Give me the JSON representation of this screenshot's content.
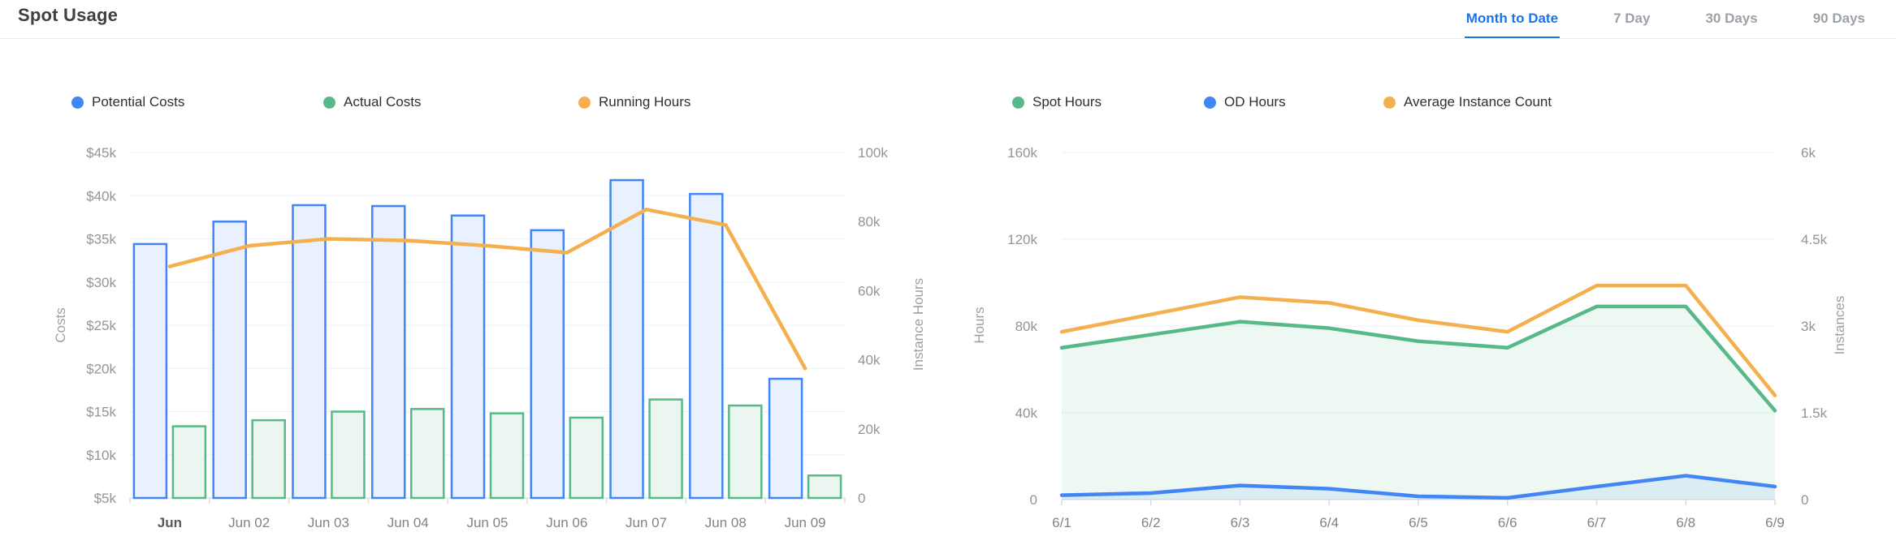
{
  "header": {
    "title": "Spot Usage"
  },
  "tabs": [
    {
      "label": "Month to Date",
      "active": true
    },
    {
      "label": "7 Day",
      "active": false
    },
    {
      "label": "30 Days",
      "active": false
    },
    {
      "label": "90 Days",
      "active": false
    }
  ],
  "colors": {
    "accent_blue": "#4285f4",
    "accent_green": "#57b987",
    "accent_orange": "#f4b04e",
    "active_tab": "#1a73e8"
  },
  "chart_data": [
    {
      "id": "costs_chart",
      "type": "bar",
      "subtype": "combo-bar-line",
      "categories": [
        "Jun",
        "Jun 02",
        "Jun 03",
        "Jun 04",
        "Jun 05",
        "Jun 06",
        "Jun 07",
        "Jun 08",
        "Jun 09"
      ],
      "series": [
        {
          "name": "Potential Costs",
          "type": "bar",
          "axis": "left",
          "color": "#4285f4",
          "fill": "#e9f1fe",
          "values": [
            34400,
            37000,
            38900,
            38800,
            37700,
            36000,
            41800,
            40200,
            18800
          ]
        },
        {
          "name": "Actual Costs",
          "type": "bar",
          "axis": "left",
          "color": "#57b987",
          "fill": "#eaf6ef",
          "values": [
            13300,
            14000,
            15000,
            15300,
            14800,
            14300,
            16400,
            15700,
            7600
          ]
        },
        {
          "name": "Running Hours",
          "type": "line",
          "axis": "right",
          "color": "#f4b04e",
          "values": [
            67000,
            73000,
            75000,
            74500,
            73000,
            71000,
            83500,
            79000,
            37500
          ]
        }
      ],
      "left_axis": {
        "label": "Costs",
        "min": 5000,
        "max": 45000,
        "ticks": [
          "$45k",
          "$40k",
          "$35k",
          "$30k",
          "$25k",
          "$20k",
          "$15k",
          "$10k",
          "$5k"
        ]
      },
      "right_axis": {
        "label": "Instance Hours",
        "min": 0,
        "max": 100000,
        "ticks": [
          "100k",
          "80k",
          "60k",
          "40k",
          "20k",
          "0"
        ]
      },
      "grid": true,
      "legend_position": "top"
    },
    {
      "id": "usage_chart",
      "type": "area",
      "subtype": "area-line",
      "x": [
        "6/1",
        "6/2",
        "6/3",
        "6/4",
        "6/5",
        "6/6",
        "6/7",
        "6/8",
        "6/9"
      ],
      "series": [
        {
          "name": "Spot Hours",
          "type": "area",
          "axis": "left",
          "color": "#57b987",
          "fill": "rgba(87,185,135,0.10)",
          "values": [
            70000,
            76000,
            82000,
            79000,
            73000,
            70000,
            89000,
            89000,
            41000
          ]
        },
        {
          "name": "OD Hours",
          "type": "area",
          "axis": "left",
          "color": "#4285f4",
          "fill": "rgba(66,133,244,0.10)",
          "values": [
            2000,
            3000,
            6500,
            5000,
            1500,
            800,
            6000,
            11000,
            6000
          ]
        },
        {
          "name": "Average Instance Count",
          "type": "line",
          "axis": "right",
          "color": "#f4b04e",
          "values": [
            2900,
            3200,
            3500,
            3400,
            3100,
            2900,
            3700,
            3700,
            1800
          ]
        }
      ],
      "left_axis": {
        "label": "Hours",
        "min": 0,
        "max": 160000,
        "ticks": [
          "160k",
          "120k",
          "80k",
          "40k",
          "0"
        ]
      },
      "right_axis": {
        "label": "Instances",
        "min": 0,
        "max": 6000,
        "ticks": [
          "6k",
          "4.5k",
          "3k",
          "1.5k",
          "0"
        ]
      },
      "grid": true,
      "legend_position": "top"
    }
  ]
}
